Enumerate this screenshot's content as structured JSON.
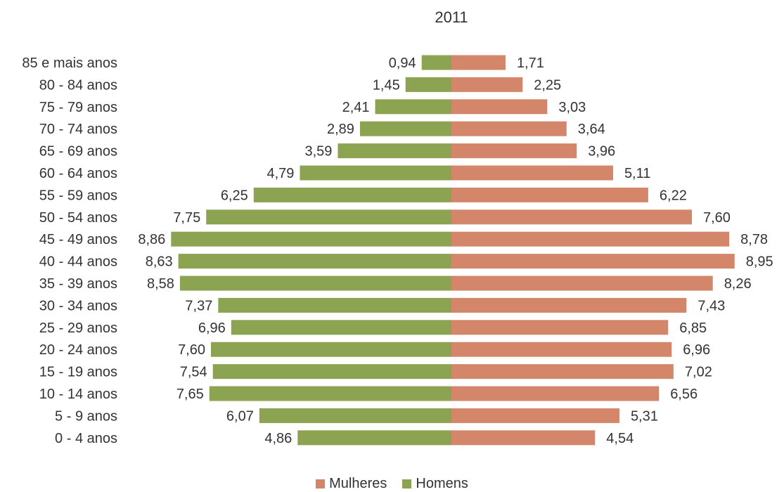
{
  "chart_data": {
    "type": "bar",
    "orientation": "horizontal-population-pyramid",
    "title": "2011",
    "categories": [
      "85 e mais anos",
      "80 - 84 anos",
      "75 - 79 anos",
      "70 - 74 anos",
      "65 - 69 anos",
      "60 - 64 anos",
      "55 - 59 anos",
      "50 - 54 anos",
      "45 - 49 anos",
      "40 - 44 anos",
      "35 - 39 anos",
      "30 - 34 anos",
      "25 - 29 anos",
      "20 - 24 anos",
      "15 - 19 anos",
      "10 - 14 anos",
      "5 - 9 anos",
      "0 - 4 anos"
    ],
    "series": [
      {
        "name": "Homens",
        "side": "left",
        "color": "#8ca352",
        "values": [
          0.94,
          1.45,
          2.41,
          2.89,
          3.59,
          4.79,
          6.25,
          7.75,
          8.86,
          8.63,
          8.58,
          7.37,
          6.96,
          7.6,
          7.54,
          7.65,
          6.07,
          4.86
        ],
        "labels": [
          "0,94",
          "1,45",
          "2,41",
          "2,89",
          "3,59",
          "4,79",
          "6,25",
          "7,75",
          "8,86",
          "8,63",
          "8,58",
          "7,37",
          "6,96",
          "7,60",
          "7,54",
          "7,65",
          "6,07",
          "4,86"
        ]
      },
      {
        "name": "Mulheres",
        "side": "right",
        "color": "#d4866a",
        "values": [
          1.71,
          2.25,
          3.03,
          3.64,
          3.96,
          5.11,
          6.22,
          7.6,
          8.78,
          8.95,
          8.26,
          7.43,
          6.85,
          6.96,
          7.02,
          6.56,
          5.31,
          4.54
        ],
        "labels": [
          "1,71",
          "2,25",
          "3,03",
          "3,64",
          "3,96",
          "5,11",
          "6,22",
          "7,60",
          "8,78",
          "8,95",
          "8,26",
          "7,43",
          "6,85",
          "6,96",
          "7,02",
          "6,56",
          "5,31",
          "4,54"
        ]
      }
    ],
    "legend": {
      "placement": "bottom-center",
      "order": [
        "Mulheres",
        "Homens"
      ]
    },
    "xlim": [
      0,
      9
    ],
    "grid": false
  }
}
